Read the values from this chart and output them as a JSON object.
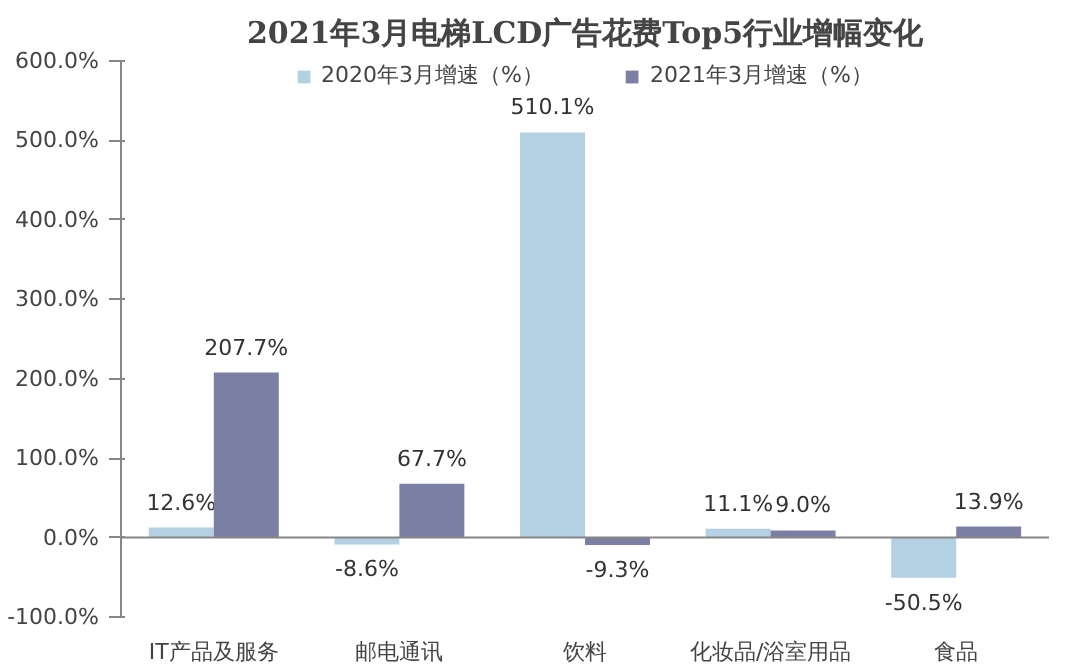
{
  "chart_data": {
    "type": "bar",
    "title": "2021年3月电梯LCD广告花费Top5行业增幅变化",
    "categories": [
      "IT产品及服务",
      "邮电通讯",
      "饮料",
      "化妆品/浴室用品",
      "食品"
    ],
    "series": [
      {
        "name": "2020年3月增速（%）",
        "color": "#b4d0e3",
        "values": [
          12.6,
          -8.6,
          510.1,
          11.1,
          -50.5
        ],
        "value_labels": [
          "12.6%",
          "-8.6%",
          "510.1%",
          "11.1%",
          "-50.5%"
        ]
      },
      {
        "name": "2021年3月增速（%）",
        "color": "#7a7fa3",
        "values": [
          207.7,
          67.7,
          -9.3,
          9.0,
          13.9
        ],
        "value_labels": [
          "207.7%",
          "67.7%",
          "-9.3%",
          "9.0%",
          "13.9%"
        ]
      }
    ],
    "ylim": [
      -100,
      600
    ],
    "yticks": [
      {
        "value": -100,
        "label": "-100.0%"
      },
      {
        "value": 0,
        "label": "0.0%"
      },
      {
        "value": 100,
        "label": "100.0%"
      },
      {
        "value": 200,
        "label": "200.0%"
      },
      {
        "value": 300,
        "label": "300.0%"
      },
      {
        "value": 400,
        "label": "400.0%"
      },
      {
        "value": 500,
        "label": "500.0%"
      },
      {
        "value": 600,
        "label": "600.0%"
      }
    ],
    "legend": "top"
  }
}
